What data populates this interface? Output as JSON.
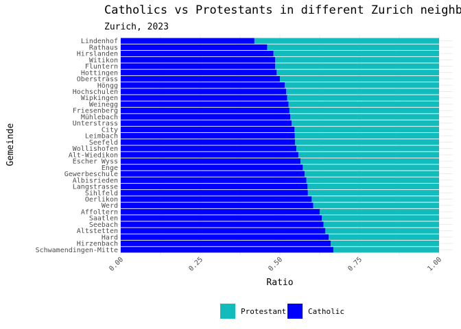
{
  "chart_data": {
    "type": "bar",
    "orientation": "horizontal",
    "stacked": true,
    "title": "Catholics vs Protestants in different Zurich neighborhoods",
    "subtitle": "Zurich, 2023",
    "xlabel": "Ratio",
    "ylabel": "Gemeinde",
    "xlim": [
      0,
      1
    ],
    "x_ticks": [
      "0.00",
      "0.25",
      "0.50",
      "0.75",
      "1.00"
    ],
    "grid": true,
    "legend_position": "bottom",
    "colors": {
      "Protestant": "#13bcbc",
      "Catholic": "#0000ff"
    },
    "categories": [
      "Lindenhof",
      "Rathaus",
      "Hirslanden",
      "Witikon",
      "Fluntern",
      "Hottingen",
      "Oberstrass",
      "Höngg",
      "Hochschulen",
      "Wipkingen",
      "Weinegg",
      "Friesenberg",
      "Mühlebach",
      "Unterstrass",
      "City",
      "Leimbach",
      "Seefeld",
      "Wollishofen",
      "Alt-Wiedikon",
      "Escher Wyss",
      "Enge",
      "Gewerbeschule",
      "Albisrieden",
      "Langstrasse",
      "Sihlfeld",
      "Oerlikon",
      "Werd",
      "Affoltern",
      "Saatlen",
      "Seebach",
      "Altstetten",
      "Hard",
      "Hirzenbach",
      "Schwamendingen-Mitte"
    ],
    "series": [
      {
        "name": "Catholic",
        "values": [
          0.42,
          0.46,
          0.48,
          0.485,
          0.485,
          0.49,
          0.5,
          0.515,
          0.52,
          0.523,
          0.527,
          0.53,
          0.533,
          0.537,
          0.546,
          0.547,
          0.548,
          0.552,
          0.558,
          0.565,
          0.572,
          0.578,
          0.583,
          0.587,
          0.588,
          0.6,
          0.605,
          0.625,
          0.632,
          0.637,
          0.643,
          0.653,
          0.66,
          0.668
        ]
      },
      {
        "name": "Protestant",
        "values": [
          0.58,
          0.54,
          0.52,
          0.515,
          0.515,
          0.51,
          0.5,
          0.485,
          0.48,
          0.477,
          0.473,
          0.47,
          0.467,
          0.463,
          0.454,
          0.453,
          0.452,
          0.448,
          0.442,
          0.435,
          0.428,
          0.422,
          0.417,
          0.413,
          0.412,
          0.4,
          0.395,
          0.375,
          0.368,
          0.363,
          0.357,
          0.347,
          0.34,
          0.332
        ]
      }
    ],
    "legend": [
      "Protestant",
      "Catholic"
    ]
  }
}
